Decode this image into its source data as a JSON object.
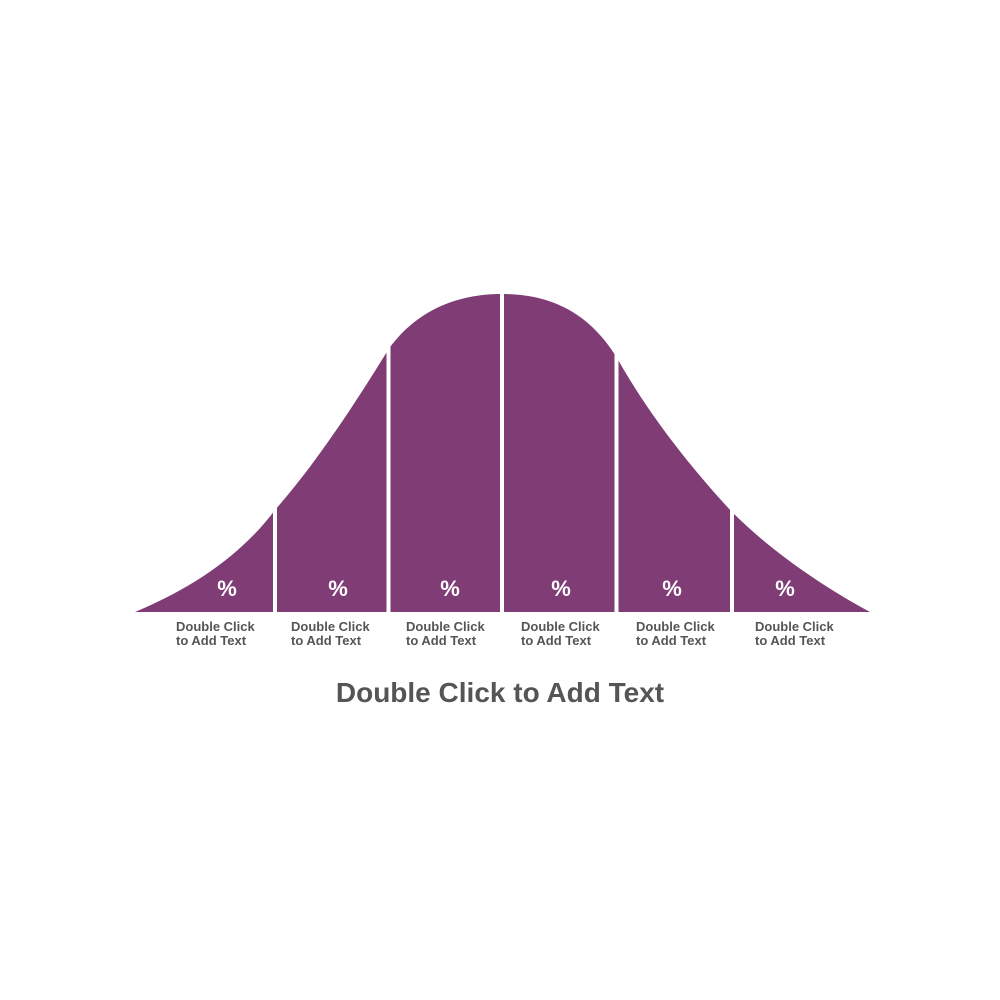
{
  "colors": {
    "curve": "#7f3c75",
    "text": "#555555",
    "divider": "#ffffff"
  },
  "segments": [
    {
      "value_label": "%",
      "caption_line1": "Double Click",
      "caption_line2": "to Add Text"
    },
    {
      "value_label": "%",
      "caption_line1": "Double Click",
      "caption_line2": "to Add Text"
    },
    {
      "value_label": "%",
      "caption_line1": "Double Click",
      "caption_line2": "to Add Text"
    },
    {
      "value_label": "%",
      "caption_line1": "Double Click",
      "caption_line2": "to Add Text"
    },
    {
      "value_label": "%",
      "caption_line1": "Double Click",
      "caption_line2": "to Add Text"
    },
    {
      "value_label": "%",
      "caption_line1": "Double Click",
      "caption_line2": "to Add Text"
    }
  ],
  "title": "Double Click to Add Text"
}
